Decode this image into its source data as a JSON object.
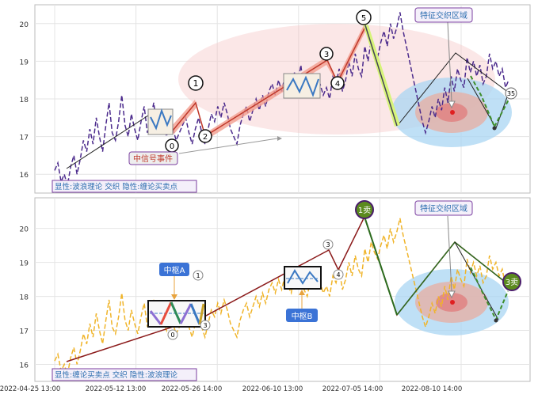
{
  "chart_data": [
    {
      "type": "line",
      "panel": "top",
      "ylim": [
        15.5,
        20.5
      ],
      "y_ticks": [
        16,
        17,
        18,
        19,
        20
      ],
      "grid": true,
      "series": [
        {
          "values": [
            16.1,
            16.3,
            15.8,
            16.0,
            15.7,
            16.2,
            16.5,
            16.0,
            16.4,
            16.9,
            16.6,
            17.2,
            16.8,
            17.5,
            17.0,
            16.6,
            17.3,
            17.9,
            17.1,
            16.9,
            17.4,
            18.1,
            17.3,
            17.0,
            17.6,
            17.2,
            16.9,
            17.4,
            17.8,
            17.1,
            17.5,
            17.9,
            17.2,
            17.6,
            17.3,
            17.0,
            17.4,
            17.2,
            16.9,
            17.1,
            17.3,
            17.5,
            17.1,
            16.8,
            17.2,
            17.5,
            17.1,
            16.8,
            17.2,
            17.6,
            17.4,
            17.8,
            17.5,
            17.9,
            17.6,
            17.2,
            17.0,
            16.8,
            17.3,
            17.6,
            17.8,
            17.4,
            17.7,
            18.0,
            17.7,
            18.1,
            17.8,
            18.2,
            18.4,
            18.1,
            18.5,
            18.2,
            18.6,
            18.3,
            18.1,
            18.7,
            18.4,
            18.9,
            18.2,
            18.0,
            18.5,
            18.3,
            18.6,
            18.4,
            18.1,
            18.3,
            18.0,
            18.6,
            18.4,
            18.8,
            18.2,
            18.5,
            19.0,
            18.6,
            19.2,
            18.8,
            18.6,
            19.4,
            19.0,
            19.6,
            19.3,
            19.1,
            19.5,
            19.8,
            19.4,
            20.0,
            19.6,
            19.9,
            20.3,
            19.8,
            19.4,
            19.0,
            18.6,
            18.2,
            17.8,
            17.4,
            17.1,
            17.4,
            17.8,
            17.5,
            18.0,
            17.7,
            18.3,
            17.9,
            18.6,
            18.2,
            18.8,
            18.5,
            18.3,
            19.1,
            18.7,
            19.0,
            18.6,
            18.9,
            18.4,
            18.6,
            19.2,
            18.8,
            19.0,
            18.6,
            18.8,
            18.3,
            18.5
          ]
        }
      ],
      "legend_text": "显性:波浪理论 交织 隐性:缠论买卖点",
      "wave_labels": [
        "0",
        "1",
        "2",
        "3",
        "4",
        "5"
      ],
      "annotations": [
        "中信号事件",
        "特征交织区域",
        "35"
      ]
    },
    {
      "type": "line",
      "panel": "bottom",
      "ylim": [
        15.5,
        20.9
      ],
      "y_ticks": [
        16,
        17,
        18,
        19,
        20
      ],
      "grid": true,
      "x_tick_labels": [
        "2022-04-25 13:00",
        "2022-05-12 13:00",
        "2022-05-26 14:00",
        "2022-06-10 13:00",
        "2022-07-05 14:00",
        "2022-08-10 14:00"
      ],
      "series": [
        {
          "values": [
            16.1,
            16.3,
            15.8,
            16.0,
            15.7,
            16.2,
            16.5,
            16.0,
            16.4,
            16.9,
            16.6,
            17.2,
            16.8,
            17.5,
            17.0,
            16.6,
            17.3,
            17.9,
            17.1,
            16.9,
            17.4,
            18.1,
            17.3,
            17.0,
            17.6,
            17.2,
            16.9,
            17.4,
            17.8,
            17.1,
            17.5,
            17.9,
            17.2,
            17.6,
            17.3,
            17.0,
            17.4,
            17.2,
            16.9,
            17.1,
            17.3,
            17.5,
            17.1,
            16.8,
            17.2,
            17.5,
            17.1,
            16.8,
            17.2,
            17.6,
            17.4,
            17.8,
            17.5,
            17.9,
            17.6,
            17.2,
            17.0,
            16.8,
            17.3,
            17.6,
            17.8,
            17.4,
            17.7,
            18.0,
            17.7,
            18.1,
            17.8,
            18.2,
            18.4,
            18.1,
            18.5,
            18.2,
            18.6,
            18.3,
            18.1,
            18.7,
            18.4,
            18.9,
            18.2,
            18.0,
            18.5,
            18.3,
            18.6,
            18.4,
            18.1,
            18.3,
            18.0,
            18.6,
            18.4,
            18.8,
            18.2,
            18.5,
            19.0,
            18.6,
            19.2,
            18.8,
            18.6,
            19.4,
            19.0,
            19.6,
            19.3,
            19.1,
            19.5,
            19.8,
            19.4,
            20.0,
            19.6,
            19.9,
            20.3,
            19.8,
            19.4,
            19.0,
            18.6,
            18.2,
            17.8,
            17.4,
            17.1,
            17.4,
            17.8,
            17.5,
            18.0,
            17.7,
            18.3,
            17.9,
            18.6,
            18.2,
            18.8,
            18.5,
            18.3,
            19.1,
            18.7,
            19.0,
            18.6,
            18.9,
            18.4,
            18.6,
            19.2,
            18.8,
            19.0,
            18.6,
            18.8,
            18.3,
            18.5
          ]
        }
      ],
      "legend_text": "显性:缠论买卖点 交织 隐性:波浪理论",
      "wave_labels": [
        "0",
        "1",
        "3",
        "3",
        "4"
      ],
      "annotations": [
        "中枢A",
        "中枢B",
        "特征交织区域",
        "1卖",
        "3卖"
      ]
    }
  ]
}
